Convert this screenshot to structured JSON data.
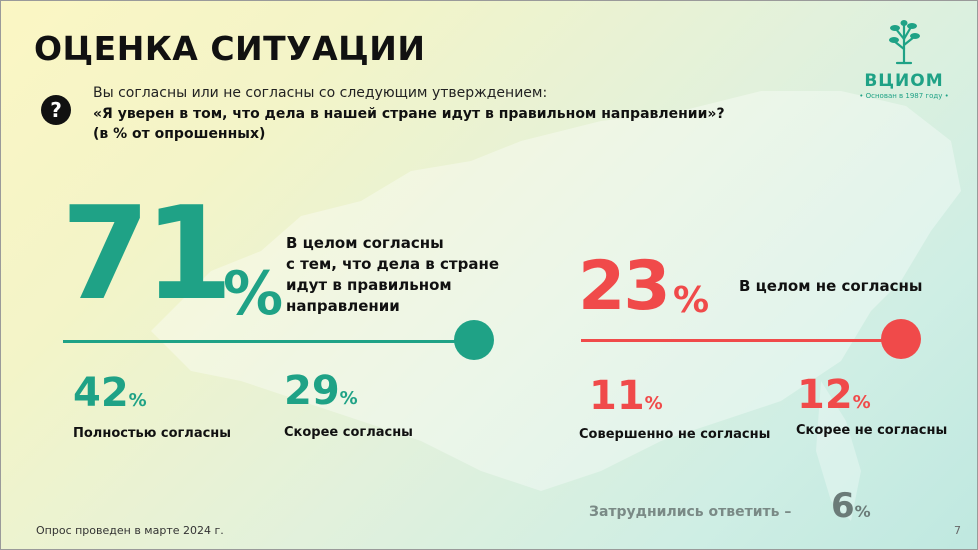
{
  "title": "ОЦЕНКА СИТУАЦИИ",
  "question": {
    "icon": "question-icon",
    "intro": "Вы согласны или не согласны со следующим утверждением:",
    "statement": "«Я уверен в том, что дела в нашей стране идут в правильном направлении»?",
    "note": "(в % от опрошенных)"
  },
  "logo": {
    "name": "ВЦИОМ",
    "tagline": "• Основан в 1987 году •"
  },
  "agree": {
    "total": "71",
    "pct": "%",
    "label_lines": [
      "В целом согласны",
      "с тем, что дела в стране",
      "идут в правильном",
      "направлении"
    ],
    "items": [
      {
        "value": "42",
        "pct": "%",
        "label": "Полностью согласны"
      },
      {
        "value": "29",
        "pct": "%",
        "label": "Скорее согласны"
      }
    ]
  },
  "disagree": {
    "total": "23",
    "pct": "%",
    "label": "В целом не согласны",
    "items": [
      {
        "value": "11",
        "pct": "%",
        "label": "Совершенно не согласны"
      },
      {
        "value": "12",
        "pct": "%",
        "label": "Скорее не согласны"
      }
    ]
  },
  "dont_know": {
    "label": "Затруднились ответить –",
    "value": "6",
    "pct": "%"
  },
  "footer": "Опрос проведен в марте 2024 г.",
  "page_number": "7",
  "colors": {
    "agree": "#1fa286",
    "disagree": "#f04a4a",
    "neutral": "#6b7b78"
  }
}
